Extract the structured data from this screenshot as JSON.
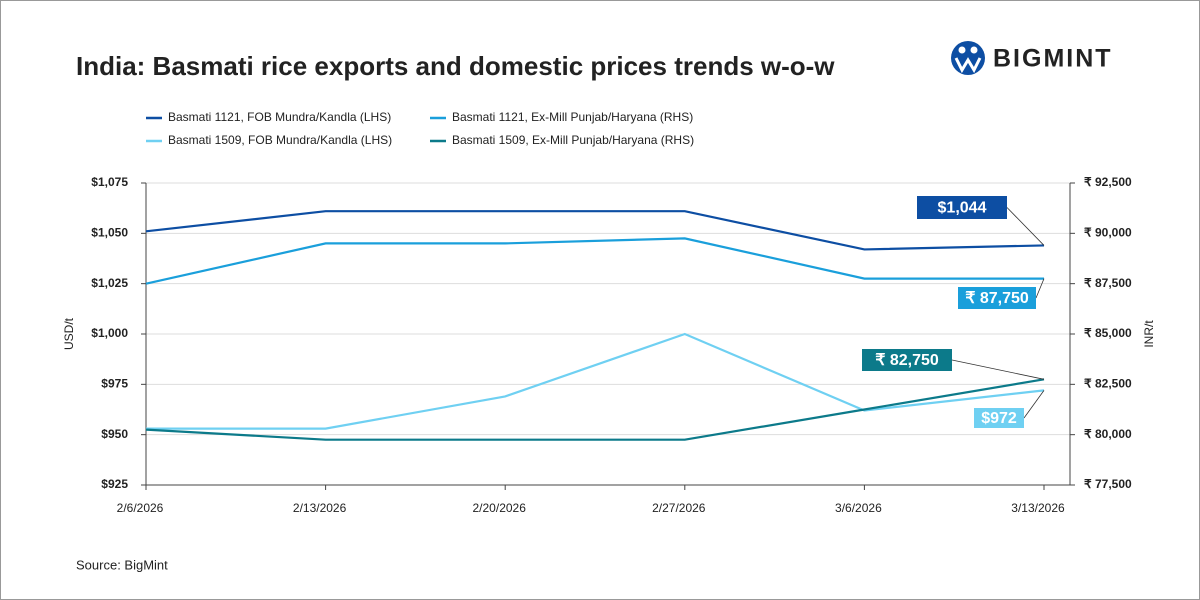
{
  "brand": "BIGMINT",
  "chart_data": {
    "type": "line",
    "title": "India: Basmati rice exports and domestic prices trends w-o-w",
    "source": "Source: BigMint",
    "y_label": "USD/t",
    "y2_label": "INR/t",
    "categories": [
      "2/6/2026",
      "2/13/2026",
      "2/20/2026",
      "2/27/2026",
      "3/6/2026",
      "3/13/2026"
    ],
    "ylim": [
      925,
      1075
    ],
    "yticks": [
      {
        "value": 925,
        "label": "$925"
      },
      {
        "value": 950,
        "label": "$950"
      },
      {
        "value": 975,
        "label": "$975"
      },
      {
        "value": 1000,
        "label": "$1,000"
      },
      {
        "value": 1025,
        "label": "$1,025"
      },
      {
        "value": 1050,
        "label": "$1,050"
      },
      {
        "value": 1075,
        "label": "$1,075"
      }
    ],
    "y2lim": [
      77500,
      92500
    ],
    "y2ticks": [
      {
        "value": 77500,
        "label": "₹ 77,500"
      },
      {
        "value": 80000,
        "label": "₹ 80,000"
      },
      {
        "value": 82500,
        "label": "₹ 82,500"
      },
      {
        "value": 85000,
        "label": "₹ 85,000"
      },
      {
        "value": 87500,
        "label": "₹ 87,500"
      },
      {
        "value": 90000,
        "label": "₹ 90,000"
      },
      {
        "value": 92500,
        "label": "₹ 92,500"
      }
    ],
    "grid": true,
    "series": [
      {
        "name": "Basmati 1121, FOB Mundra/Kandla (LHS)",
        "color": "#0d4ea3",
        "values": [
          1051,
          1061,
          1061,
          1061,
          1042,
          1044
        ],
        "value_labels": [
          null,
          null,
          null,
          null,
          null,
          "$1,044"
        ]
      },
      {
        "name": "Basmati 1121, Ex-Mill Punjab/Haryana (RHS)",
        "color": "#1a9fdb",
        "axis": "y2",
        "values": [
          87500,
          89500,
          89500,
          89750,
          87750,
          87750
        ],
        "value_labels": [
          null,
          null,
          null,
          null,
          null,
          "₹ 87,750"
        ]
      },
      {
        "name": "Basmati 1509, FOB Mundra/Kandla (LHS)",
        "color": "#6fd0f2",
        "values": [
          953,
          953,
          969,
          1000,
          962,
          972
        ],
        "value_labels": [
          null,
          null,
          null,
          null,
          null,
          "$972"
        ]
      },
      {
        "name": "Basmati 1509, Ex-Mill Punjab/Haryana (RHS)",
        "color": "#0c7a8a",
        "axis": "y2",
        "values": [
          80250,
          79750,
          79750,
          79750,
          81250,
          82750
        ],
        "value_labels": [
          null,
          null,
          null,
          null,
          null,
          "₹ 82,750"
        ]
      }
    ]
  }
}
